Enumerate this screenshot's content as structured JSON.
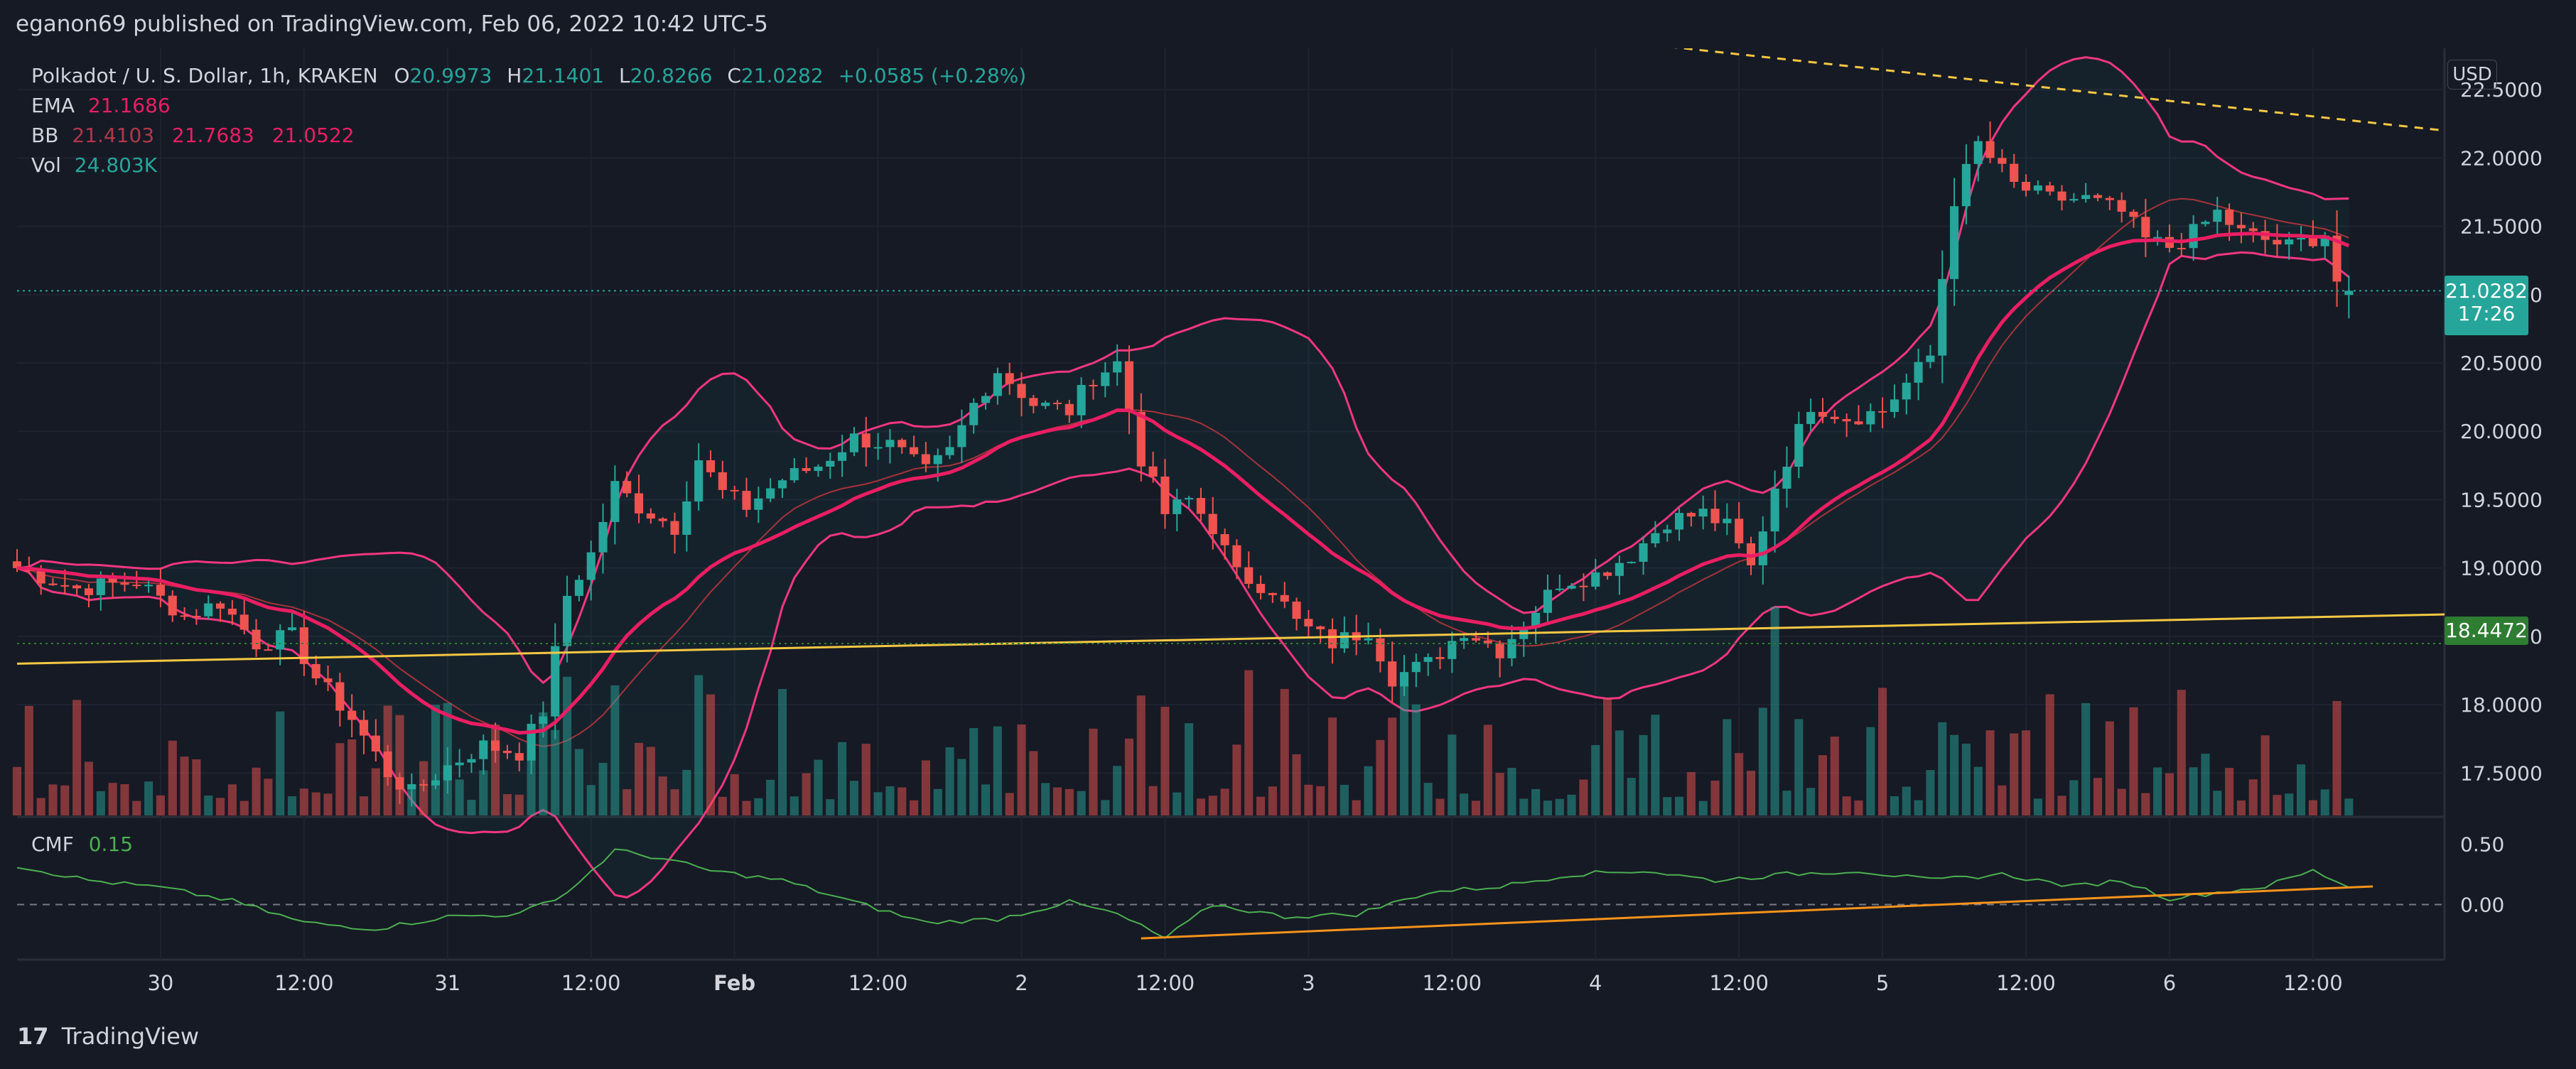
{
  "header": {
    "published": "eganon69 published on TradingView.com, Feb 06, 2022 10:42 UTC-5"
  },
  "legend": {
    "symbol": "Polkadot / U. S. Dollar, 1h, KRAKEN",
    "o_label": "O",
    "o": "20.9973",
    "h_label": "H",
    "h": "21.1401",
    "l_label": "L",
    "l": "20.8266",
    "c_label": "C",
    "c": "21.0282",
    "change": "+0.0585 (+0.28%)",
    "ema_label": "EMA",
    "ema": "21.1686",
    "bb_label": "BB",
    "bb_upper": "21.4103",
    "bb_mid": "21.7683",
    "bb_lower": "21.0522",
    "vol_label": "Vol",
    "vol": "24.803K"
  },
  "cmf": {
    "label": "CMF",
    "value": "0.15"
  },
  "price_axis": {
    "unit": "USD",
    "last_price": "21.0282",
    "countdown": "17:26",
    "level_price": "18.4472"
  },
  "footer": {
    "brand": "TradingView",
    "logo": "17"
  },
  "colors": {
    "background": "#161a25",
    "up": "#26a69a",
    "down": "#ef5350",
    "ema": "#e91e63",
    "bb": "#f23680",
    "trendline": "#f5c842",
    "cmf": "#4caf50",
    "cmf_trend": "#f7931a",
    "level": "#2e7d32"
  },
  "chart_data": {
    "type": "candlestick",
    "symbol": "Polkadot / U. S. Dollar",
    "interval": "1h",
    "exchange": "KRAKEN",
    "y_axis": {
      "ticks": [
        "22.5000",
        "22.0000",
        "21.5000",
        "21.0000",
        "20.5000",
        "20.0000",
        "19.5000",
        "19.0000",
        "18.5000",
        "18.0000",
        "17.5000"
      ],
      "ylim": [
        17.2,
        22.75
      ]
    },
    "x_axis": {
      "ticks": [
        {
          "label": "30",
          "hour": 12
        },
        {
          "label": "12:00",
          "hour": 24
        },
        {
          "label": "31",
          "hour": 36
        },
        {
          "label": "12:00",
          "hour": 48
        },
        {
          "label": "Feb",
          "hour": 60
        },
        {
          "label": "12:00",
          "hour": 72
        },
        {
          "label": "2",
          "hour": 84
        },
        {
          "label": "12:00",
          "hour": 96
        },
        {
          "label": "3",
          "hour": 108
        },
        {
          "label": "12:00",
          "hour": 120
        },
        {
          "label": "4",
          "hour": 132
        },
        {
          "label": "12:00",
          "hour": 144
        },
        {
          "label": "5",
          "hour": 156
        },
        {
          "label": "12:00",
          "hour": 168
        },
        {
          "label": "6",
          "hour": 180
        },
        {
          "label": "12:00",
          "hour": 192
        }
      ],
      "xlim": [
        0,
        203
      ]
    },
    "close_path": [
      [
        0,
        19.0
      ],
      [
        5,
        18.85
      ],
      [
        10,
        18.9
      ],
      [
        14,
        18.65
      ],
      [
        17,
        18.75
      ],
      [
        20,
        18.45
      ],
      [
        23,
        18.5
      ],
      [
        25,
        18.2
      ],
      [
        28,
        17.9
      ],
      [
        31,
        17.5
      ],
      [
        33,
        17.35
      ],
      [
        36,
        17.55
      ],
      [
        39,
        17.7
      ],
      [
        42,
        17.65
      ],
      [
        44,
        17.95
      ],
      [
        46,
        18.8
      ],
      [
        48,
        19.1
      ],
      [
        50,
        19.6
      ],
      [
        52,
        19.45
      ],
      [
        55,
        19.3
      ],
      [
        57,
        19.8
      ],
      [
        59,
        19.55
      ],
      [
        61,
        19.45
      ],
      [
        64,
        19.65
      ],
      [
        67,
        19.75
      ],
      [
        70,
        19.95
      ],
      [
        73,
        19.9
      ],
      [
        76,
        19.7
      ],
      [
        78,
        19.85
      ],
      [
        80,
        20.2
      ],
      [
        82,
        20.45
      ],
      [
        85,
        20.2
      ],
      [
        88,
        20.15
      ],
      [
        90,
        20.4
      ],
      [
        92,
        20.5
      ],
      [
        94,
        19.8
      ],
      [
        96,
        19.4
      ],
      [
        98,
        19.5
      ],
      [
        100,
        19.3
      ],
      [
        102,
        18.95
      ],
      [
        105,
        18.85
      ],
      [
        107,
        18.6
      ],
      [
        110,
        18.45
      ],
      [
        113,
        18.55
      ],
      [
        115,
        18.2
      ],
      [
        118,
        18.3
      ],
      [
        121,
        18.55
      ],
      [
        124,
        18.4
      ],
      [
        126,
        18.6
      ],
      [
        129,
        18.9
      ],
      [
        132,
        18.95
      ],
      [
        135,
        19.1
      ],
      [
        138,
        19.35
      ],
      [
        141,
        19.4
      ],
      [
        143,
        19.3
      ],
      [
        145,
        19.0
      ],
      [
        147,
        19.6
      ],
      [
        150,
        20.2
      ],
      [
        153,
        20.1
      ],
      [
        156,
        20.15
      ],
      [
        158,
        20.35
      ],
      [
        160,
        20.55
      ],
      [
        162,
        21.7
      ],
      [
        164,
        22.1
      ],
      [
        167,
        21.8
      ],
      [
        170,
        21.7
      ],
      [
        173,
        21.7
      ],
      [
        176,
        21.6
      ],
      [
        178,
        21.4
      ],
      [
        180,
        21.35
      ],
      [
        182,
        21.45
      ],
      [
        184,
        21.6
      ],
      [
        186,
        21.45
      ],
      [
        188,
        21.4
      ],
      [
        190,
        21.35
      ],
      [
        193,
        21.45
      ],
      [
        194,
        21.1
      ],
      [
        195,
        21.03
      ]
    ],
    "bars_count": 196,
    "ema_value": 21.1686,
    "bollinger": {
      "upper": 21.4103,
      "basis": 21.7683,
      "lower": 21.0522
    },
    "last": {
      "open": 20.9973,
      "high": 21.1401,
      "low": 20.8266,
      "close": 21.0282,
      "change": 0.0585,
      "change_pct": 0.28
    },
    "volume_last": "24.803K",
    "horizontal_level": 18.4472,
    "drawings": [
      {
        "type": "trendline",
        "style": "solid",
        "from": [
          0,
          18.3
        ],
        "to": [
          203,
          18.66
        ]
      },
      {
        "type": "trendline",
        "style": "dashed",
        "from": [
          129,
          22.9
        ],
        "to": [
          203,
          22.2
        ]
      }
    ],
    "cmf": {
      "value": 0.15,
      "ticks": [
        "0.50",
        "0.00"
      ],
      "ylim": [
        -0.35,
        0.62
      ],
      "path": [
        [
          0,
          0.32
        ],
        [
          6,
          0.2
        ],
        [
          12,
          0.14
        ],
        [
          18,
          0.03
        ],
        [
          24,
          -0.15
        ],
        [
          30,
          -0.2
        ],
        [
          36,
          -0.1
        ],
        [
          42,
          -0.08
        ],
        [
          46,
          0.1
        ],
        [
          50,
          0.45
        ],
        [
          54,
          0.38
        ],
        [
          58,
          0.28
        ],
        [
          64,
          0.2
        ],
        [
          70,
          0.02
        ],
        [
          76,
          -0.15
        ],
        [
          82,
          -0.12
        ],
        [
          88,
          0.02
        ],
        [
          92,
          -0.08
        ],
        [
          96,
          -0.28
        ],
        [
          100,
          0.0
        ],
        [
          106,
          -0.1
        ],
        [
          112,
          -0.08
        ],
        [
          118,
          0.1
        ],
        [
          124,
          0.15
        ],
        [
          130,
          0.25
        ],
        [
          136,
          0.28
        ],
        [
          142,
          0.2
        ],
        [
          148,
          0.25
        ],
        [
          154,
          0.28
        ],
        [
          160,
          0.2
        ],
        [
          166,
          0.25
        ],
        [
          172,
          0.15
        ],
        [
          176,
          0.2
        ],
        [
          180,
          0.05
        ],
        [
          184,
          0.1
        ],
        [
          188,
          0.15
        ],
        [
          192,
          0.28
        ],
        [
          195,
          0.15
        ]
      ],
      "trendline": {
        "from": [
          94,
          -0.28
        ],
        "to": [
          197,
          0.15
        ]
      }
    }
  }
}
